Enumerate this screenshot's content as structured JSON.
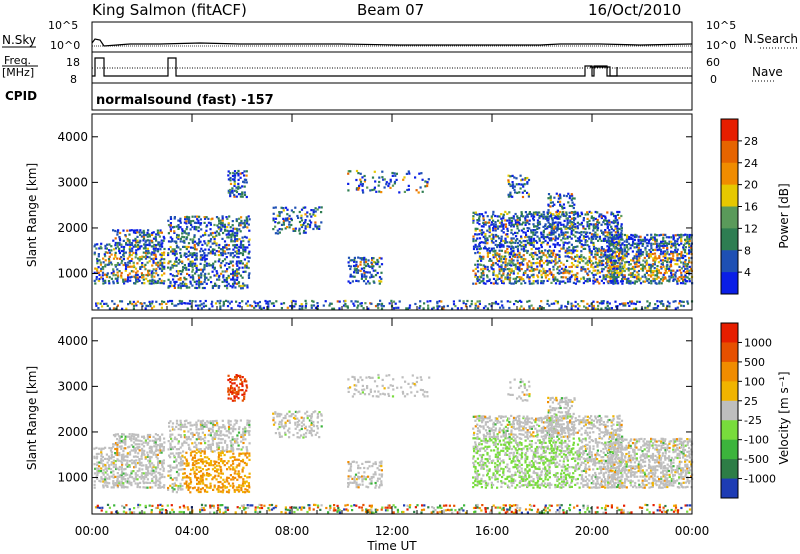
{
  "header": {
    "radar": "King Salmon (fitACF)",
    "beam": "Beam 07",
    "date": "16/Oct/2010"
  },
  "summary": {
    "nsky_label": "N.Sky",
    "freq_label_line1": "Freq.",
    "freq_label_line2": "[MHz]",
    "cpid_label": "CPID",
    "nsearch_label": "N.Search",
    "nave_label": "Nave",
    "noise_ticks": [
      "10^5",
      "10^0"
    ],
    "freq_ticks": [
      "18",
      "8"
    ],
    "nave_ticks": [
      "60",
      "0"
    ],
    "cpid_text": "normalsound (fast) -157"
  },
  "chart_data": [
    {
      "type": "heatmap",
      "name": "power-panel",
      "ylabel": "Slant Range [km]",
      "yticks": [
        "1000",
        "2000",
        "3000",
        "4000"
      ],
      "ylim": [
        200,
        4500
      ],
      "colorbar": {
        "label": "Power [dB]",
        "ticks": [
          "4",
          "8",
          "12",
          "16",
          "20",
          "24",
          "28"
        ],
        "colors": [
          "#0a1ee6",
          "#1e50b4",
          "#2e7d52",
          "#5a9a5a",
          "#e6c800",
          "#f08c00",
          "#e66400",
          "#e61e00"
        ]
      }
    },
    {
      "type": "heatmap",
      "name": "velocity-panel",
      "ylabel": "Slant Range [km]",
      "yticks": [
        "1000",
        "2000",
        "3000",
        "4000"
      ],
      "ylim": [
        200,
        4500
      ],
      "colorbar": {
        "label": "Velocity [m s⁻¹]",
        "ticks": [
          "1000",
          "500",
          "100",
          "25",
          "-25",
          "-100",
          "-500",
          "-1000"
        ],
        "colors": [
          "#1e3cb4",
          "#2d7d46",
          "#3cb43c",
          "#78dc3c",
          "#bebebe",
          "#f0b400",
          "#f08c00",
          "#e65000",
          "#e61e00"
        ]
      }
    }
  ],
  "time_axis": {
    "label": "Time UT",
    "ticks": [
      "00:00",
      "04:00",
      "08:00",
      "12:00",
      "16:00",
      "20:00",
      "00:00"
    ]
  }
}
